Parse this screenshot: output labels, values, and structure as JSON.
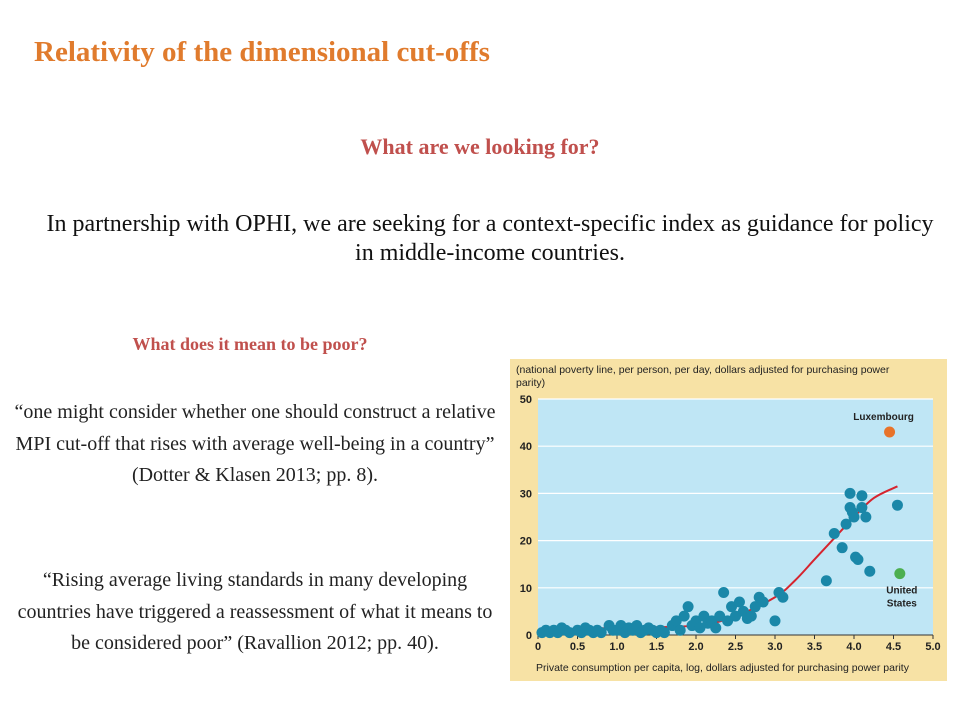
{
  "slide": {
    "title": "Relativity of  the dimensional  cut-offs",
    "question1": "What are we looking for?",
    "intro": "In partnership with OPHI, we are seeking for a context-specific index as guidance for policy in middle-income countries.",
    "question2": "What does it mean to be poor?",
    "quote1": "“one might consider whether one should construct a relative MPI cut-off that rises with average well-being in a country” (Dotter & Klasen 2013; pp. 8).",
    "quote2": "“Rising average living standards in many developing countries have triggered a reassessment of what it means to be considered poor” (Ravallion 2012; pp. 40)."
  },
  "chart_data": {
    "type": "scatter",
    "ylabel_line1": "(national poverty line, per person, per day, dollars adjusted for purchasing power",
    "ylabel_line2": "parity)",
    "xlabel": "Private consumption per capita, log, dollars adjusted for purchasing power parity",
    "xlim": [
      0,
      5
    ],
    "ylim": [
      0,
      50
    ],
    "x_ticks": [
      "0",
      "0.5",
      "1.0",
      "1.5",
      "2.0",
      "2.5",
      "3.0",
      "3.5",
      "4.0",
      "4.5",
      "5.0"
    ],
    "y_ticks": [
      "0",
      "10",
      "20",
      "30",
      "40",
      "50"
    ],
    "colors": {
      "panel_bg": "#f7e2a5",
      "plot_bg": "#bfe6f5",
      "point": "#1a87a8",
      "curve": "#d6242e",
      "luxembourg": "#e8732a",
      "united_states": "#4caf50"
    },
    "annotations": [
      {
        "text": "Luxembourg",
        "x": 4.45,
        "y": 43
      },
      {
        "text": "United",
        "x": 4.58,
        "y": 13
      },
      {
        "text": "States",
        "x": 4.58,
        "y": 13
      }
    ],
    "highlighted_points": [
      {
        "name": "Luxembourg",
        "x": 4.45,
        "y": 43
      },
      {
        "name": "United States",
        "x": 4.58,
        "y": 13
      }
    ],
    "fit_curve": {
      "x": [
        0.0,
        1.0,
        2.0,
        2.5,
        3.0,
        3.25,
        3.5,
        3.75,
        4.0,
        4.25,
        4.55
      ],
      "y": [
        1.0,
        1.5,
        2.0,
        4.0,
        8.0,
        11.5,
        16.0,
        20.5,
        25.0,
        29.0,
        31.5
      ]
    },
    "points": {
      "x": [
        0.05,
        0.1,
        0.15,
        0.2,
        0.25,
        0.3,
        0.35,
        0.4,
        0.5,
        0.55,
        0.6,
        0.65,
        0.7,
        0.75,
        0.8,
        0.9,
        0.95,
        1.0,
        1.05,
        1.1,
        1.15,
        1.2,
        1.25,
        1.3,
        1.35,
        1.4,
        1.45,
        1.5,
        1.55,
        1.6,
        1.7,
        1.75,
        1.8,
        1.85,
        1.9,
        1.95,
        2.0,
        2.05,
        2.1,
        2.15,
        2.2,
        2.25,
        2.3,
        2.35,
        2.4,
        2.45,
        2.5,
        2.55,
        2.6,
        2.65,
        2.7,
        2.75,
        2.8,
        2.85,
        3.0,
        3.05,
        3.1,
        3.65,
        3.75,
        3.85,
        3.9,
        3.95,
        3.95,
        3.98,
        4.0,
        4.02,
        4.05,
        4.1,
        4.1,
        4.15,
        4.2,
        4.55
      ],
      "y": [
        0.5,
        1.0,
        0.5,
        1.0,
        0.5,
        1.5,
        1.0,
        0.5,
        1.0,
        0.5,
        1.5,
        1.0,
        0.5,
        1.0,
        0.5,
        2.0,
        1.0,
        1.0,
        2.0,
        0.5,
        1.5,
        1.0,
        2.0,
        0.5,
        1.0,
        1.5,
        1.0,
        0.5,
        1.0,
        0.5,
        2.0,
        3.0,
        1.0,
        4.0,
        6.0,
        2.0,
        3.0,
        1.5,
        4.0,
        2.5,
        3.0,
        1.5,
        4.0,
        9.0,
        3.0,
        6.0,
        4.0,
        7.0,
        5.0,
        3.5,
        4.0,
        6.0,
        8.0,
        7.0,
        3.0,
        9.0,
        8.0,
        11.5,
        21.5,
        18.5,
        23.5,
        27.0,
        30.0,
        26.0,
        25.0,
        16.5,
        16.0,
        29.5,
        27.0,
        25.0,
        13.5,
        27.5
      ]
    }
  }
}
